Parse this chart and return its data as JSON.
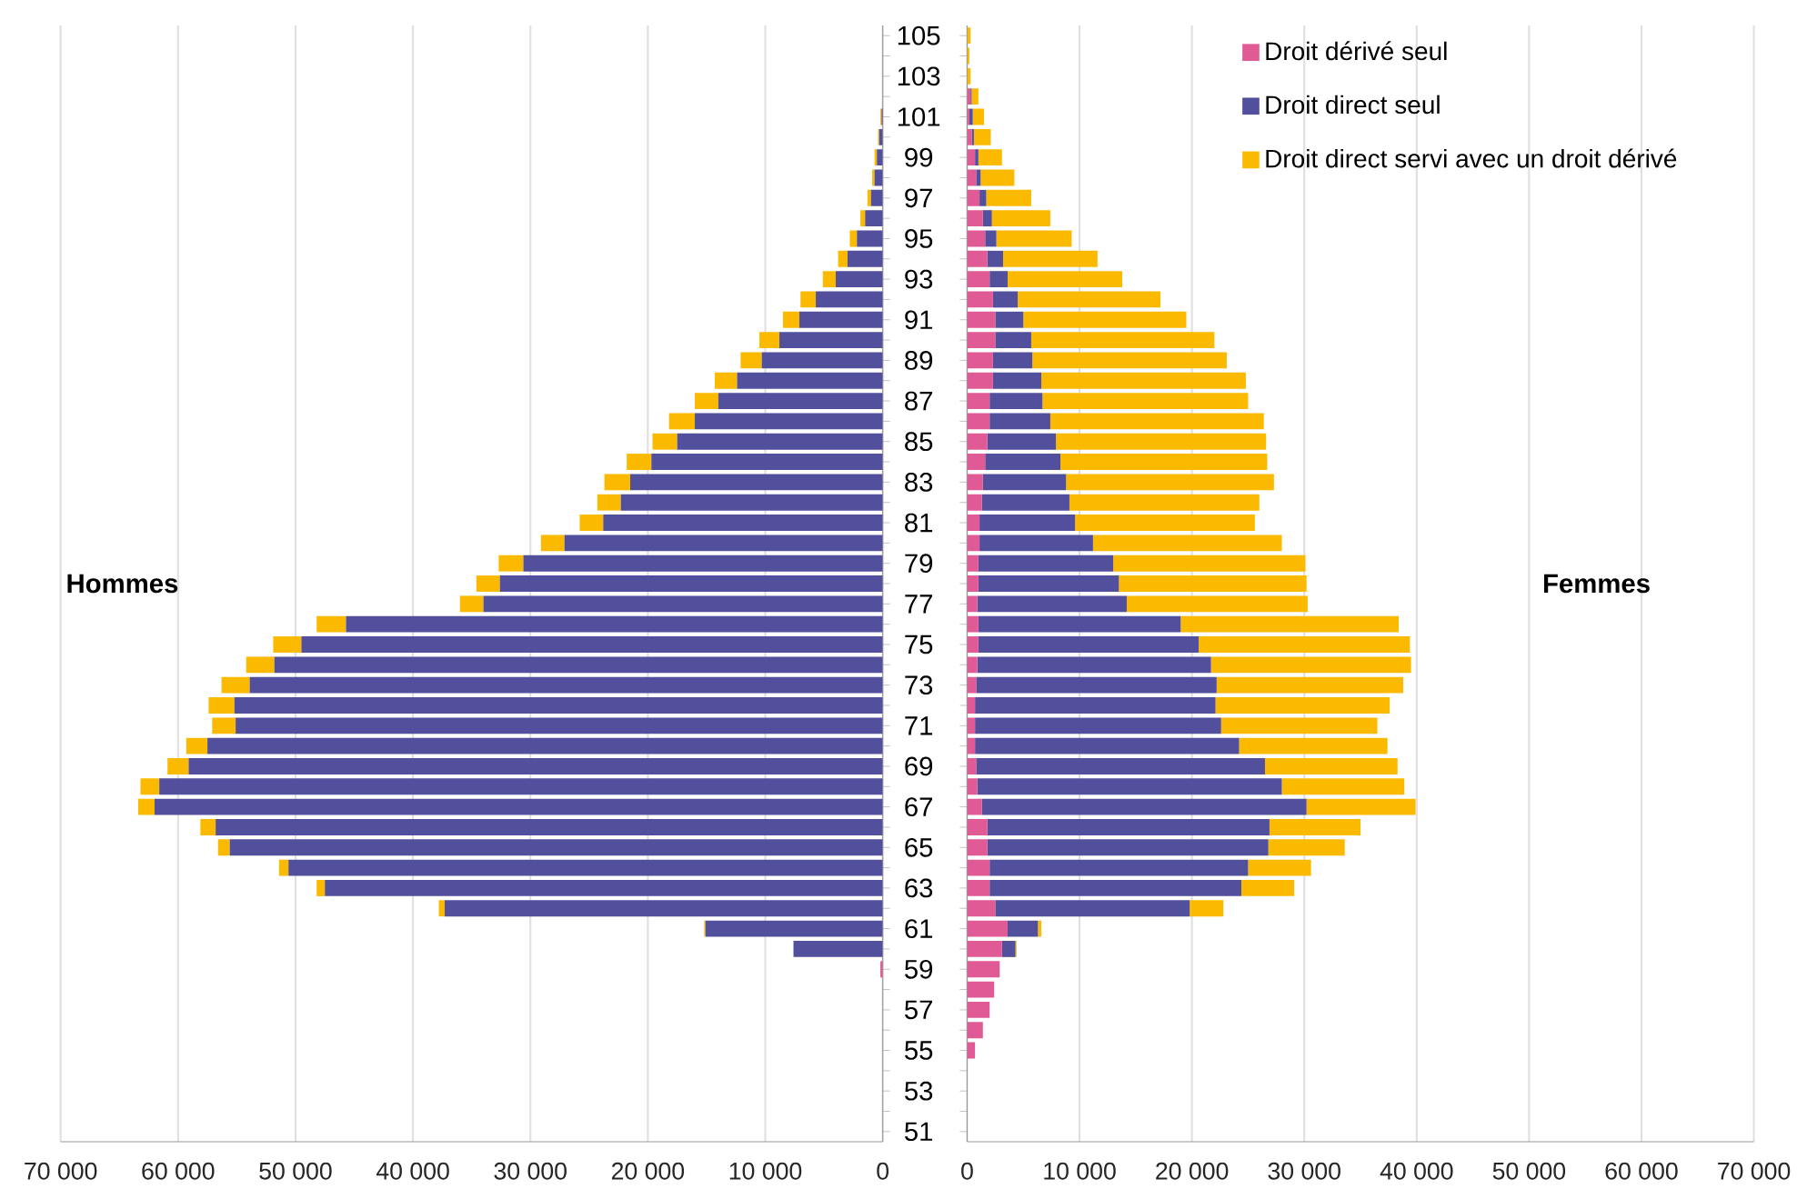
{
  "chart_data": [
    {
      "type": "bar",
      "orientation": "horizontal",
      "stacked": true,
      "grid": "x",
      "legend": false,
      "tick_labels": "x",
      "categories": [
        "105",
        null,
        "103",
        null,
        "101",
        null,
        "99",
        null,
        "97",
        null,
        "95",
        null,
        "93",
        null,
        "91",
        null,
        "89",
        null,
        "87",
        null,
        "85",
        null,
        "83",
        null,
        "81",
        null,
        "79",
        null,
        "77",
        null,
        "75",
        null,
        "73",
        null,
        "71",
        null,
        "69",
        null,
        "67",
        null,
        "65",
        null,
        "63",
        null,
        "61",
        null,
        "59",
        null,
        "57",
        null,
        "55",
        null,
        "53",
        null,
        "51"
      ],
      "xlim": [
        70000,
        0
      ],
      "xticks": [
        {
          "value": 70000,
          "label": "70 000"
        },
        {
          "value": 60000,
          "label": "60 000"
        },
        {
          "value": 50000,
          "label": "50 000"
        },
        {
          "value": 40000,
          "label": "40 000"
        },
        {
          "value": 30000,
          "label": "30 000"
        },
        {
          "value": 20000,
          "label": "20 000"
        },
        {
          "value": 10000,
          "label": "10 000"
        },
        0
      ],
      "annotations": [
        "Hommes"
      ],
      "series": [
        {
          "color": "#e05a95",
          "values": [
            0,
            0,
            0,
            0,
            0,
            0,
            0,
            0,
            0,
            0,
            0,
            0,
            0,
            0,
            0,
            0,
            0,
            0,
            0,
            0,
            0,
            0,
            0,
            0,
            0,
            0,
            0,
            0,
            0,
            0,
            0,
            0,
            0,
            0,
            0,
            0,
            0,
            0,
            0,
            0,
            0,
            0,
            0,
            0,
            0,
            0,
            200,
            0,
            0,
            0,
            0,
            0,
            0,
            0,
            0
          ]
        },
        {
          "color": "#524f9c",
          "values": [
            0,
            0,
            0,
            0,
            100,
            300,
            500,
            700,
            1000,
            1500,
            2200,
            3000,
            4000,
            5700,
            7100,
            8800,
            10300,
            12400,
            14000,
            16000,
            17500,
            19700,
            21500,
            22300,
            23800,
            27100,
            30600,
            32600,
            34000,
            45700,
            49500,
            51800,
            53900,
            55200,
            55100,
            57500,
            59100,
            61600,
            62000,
            56800,
            55600,
            50600,
            47500,
            37300,
            15100,
            7600,
            0,
            0,
            0,
            0,
            0,
            0,
            0,
            0,
            0
          ]
        },
        {
          "color": "#fbba00",
          "values": [
            0,
            0,
            0,
            0,
            100,
            100,
            200,
            200,
            300,
            400,
            600,
            800,
            1100,
            1300,
            1400,
            1700,
            1800,
            1900,
            2000,
            2200,
            2100,
            2100,
            2200,
            2000,
            2000,
            2000,
            2100,
            2000,
            2000,
            2500,
            2400,
            2400,
            2400,
            2200,
            2000,
            1800,
            1800,
            1600,
            1400,
            1300,
            1000,
            800,
            700,
            500,
            100,
            0,
            0,
            0,
            0,
            0,
            0,
            0,
            0,
            0,
            0
          ]
        }
      ]
    },
    {
      "type": "bar",
      "orientation": "horizontal",
      "stacked": true,
      "grid": "x",
      "legend": "top right",
      "categories": [
        "105",
        null,
        "103",
        null,
        "101",
        null,
        "99",
        null,
        "97",
        null,
        "95",
        null,
        "93",
        null,
        "91",
        null,
        "89",
        null,
        "87",
        null,
        "85",
        null,
        "83",
        null,
        "81",
        null,
        "79",
        null,
        "77",
        null,
        "75",
        null,
        "73",
        null,
        "71",
        null,
        "69",
        null,
        "67",
        null,
        "65",
        null,
        "63",
        null,
        "61",
        null,
        "59",
        null,
        "57",
        null,
        "55",
        null,
        "53",
        null,
        "51"
      ],
      "xlim": [
        0,
        70000
      ],
      "xticks": [
        0,
        {
          "value": 10000,
          "label": "10 000"
        },
        {
          "value": 20000,
          "label": "20 000"
        },
        {
          "value": 30000,
          "label": "30 000"
        },
        {
          "value": 40000,
          "label": "40 000"
        },
        {
          "value": 50000,
          "label": "50 000"
        },
        {
          "value": 60000,
          "label": "60 000"
        },
        {
          "value": 70000,
          "label": "70 000"
        }
      ],
      "annotations": [
        "Femmes"
      ],
      "series": [
        {
          "name": "Droit dérivé seul",
          "color": "#e05a95",
          "values": [
            0,
            0,
            0,
            300,
            200,
            400,
            700,
            800,
            1100,
            1400,
            1600,
            1800,
            2000,
            2300,
            2500,
            2500,
            2300,
            2300,
            2000,
            2000,
            1800,
            1600,
            1400,
            1300,
            1100,
            1100,
            1000,
            1000,
            900,
            1000,
            1000,
            900,
            800,
            700,
            700,
            700,
            800,
            900,
            1300,
            1800,
            1800,
            2000,
            2000,
            2500,
            3600,
            3100,
            2900,
            2400,
            2000,
            1400,
            700,
            0,
            0,
            0,
            0
          ]
        },
        {
          "name": "Droit direct seul",
          "color": "#524f9c",
          "values": [
            0,
            0,
            0,
            100,
            300,
            200,
            300,
            400,
            600,
            800,
            1000,
            1400,
            1600,
            2200,
            2500,
            3200,
            3500,
            4300,
            4700,
            5400,
            6100,
            6700,
            7400,
            7800,
            8500,
            10100,
            12000,
            12500,
            13300,
            18000,
            19600,
            20800,
            21400,
            21400,
            21900,
            23500,
            25700,
            27100,
            28900,
            25100,
            25000,
            23000,
            22400,
            17300,
            2700,
            1200,
            0,
            0,
            0,
            0,
            0,
            0,
            0,
            0,
            0
          ]
        },
        {
          "name": "Droit direct servi avec un droit dérivé",
          "color": "#fbba00",
          "values": [
            300,
            200,
            300,
            600,
            1000,
            1500,
            2100,
            3000,
            4000,
            5200,
            6700,
            8400,
            10200,
            12700,
            14500,
            16300,
            17300,
            18200,
            18300,
            19000,
            18700,
            18400,
            18500,
            16900,
            16000,
            16800,
            17100,
            16700,
            16100,
            19400,
            18800,
            17800,
            16600,
            15500,
            13900,
            13200,
            11800,
            10900,
            9700,
            8100,
            6800,
            5600,
            4700,
            3000,
            300,
            100,
            0,
            0,
            0,
            0,
            0,
            0,
            0,
            0,
            0
          ]
        }
      ]
    }
  ]
}
